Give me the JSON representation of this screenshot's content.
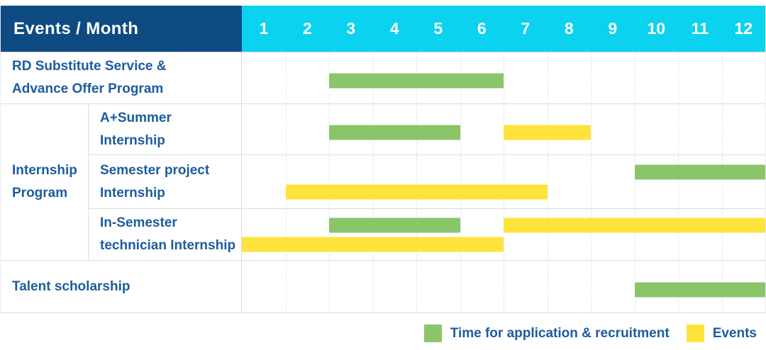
{
  "table": {
    "header": {
      "label": "Events / Month",
      "months": [
        "1",
        "2",
        "3",
        "4",
        "5",
        "6",
        "7",
        "8",
        "9",
        "10",
        "11",
        "12"
      ]
    },
    "rows": [
      {
        "lines": [
          "RD Substitute Service &",
          "Advance Offer Program"
        ]
      },
      {
        "group_lines": [
          "Internship",
          "Program"
        ],
        "lines": [
          "A+Summer",
          "Internship"
        ]
      },
      {
        "lines": [
          "Semester project",
          "Internship"
        ]
      },
      {
        "lines": [
          "In-Semester",
          "technician Internship"
        ]
      },
      {
        "lines": [
          "Talent scholarship"
        ]
      }
    ]
  },
  "legend": {
    "application_label": "Time for application & recruitment",
    "events_label": "Events"
  },
  "colors": {
    "header_bg": "#0d4b82",
    "months_bg": "#0bd3ef",
    "label_text": "#1d5c9e",
    "application": "#8bc56a",
    "events": "#ffe33d",
    "grid_line": "#dcdcdc"
  },
  "chart_data": {
    "type": "gantt",
    "x_unit": "month",
    "x_ticks": [
      1,
      2,
      3,
      4,
      5,
      6,
      7,
      8,
      9,
      10,
      11,
      12
    ],
    "legend_position": "bottom-right",
    "series": [
      {
        "key": "application",
        "name": "Time for application & recruitment",
        "color": "#8bc56a"
      },
      {
        "key": "events",
        "name": "Events",
        "color": "#ffe33d"
      }
    ],
    "rows": [
      {
        "label": "RD Substitute Service & Advance Offer Program",
        "group": null,
        "lanes": [
          [
            {
              "series": "application",
              "start_month": 3,
              "end_month": 6
            }
          ]
        ]
      },
      {
        "label": "A+Summer Internship",
        "group": "Internship Program",
        "lanes": [
          [
            {
              "series": "application",
              "start_month": 3,
              "end_month": 5
            },
            {
              "series": "events",
              "start_month": 7,
              "end_month": 8
            }
          ]
        ]
      },
      {
        "label": "Semester project Internship",
        "group": "Internship Program",
        "lanes": [
          [
            {
              "series": "application",
              "start_month": 10,
              "end_month": 12
            }
          ],
          [
            {
              "series": "events",
              "start_month": 2,
              "end_month": 7
            }
          ]
        ]
      },
      {
        "label": "In-Semester technician Internship",
        "group": "Internship Program",
        "lanes": [
          [
            {
              "series": "application",
              "start_month": 3,
              "end_month": 5
            },
            {
              "series": "events",
              "start_month": 7,
              "end_month": 12
            }
          ],
          [
            {
              "series": "events",
              "start_month": 1,
              "end_month": 6
            }
          ]
        ]
      },
      {
        "label": "Talent scholarship",
        "group": null,
        "lanes": [
          [
            {
              "series": "application",
              "start_month": 10,
              "end_month": 12
            }
          ]
        ]
      }
    ]
  }
}
